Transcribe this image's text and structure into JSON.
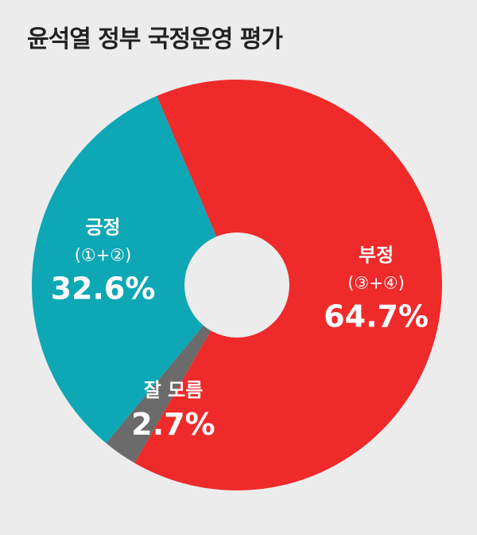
{
  "chart_data": {
    "type": "pie",
    "title": "윤석열 정부 국정운영 평가",
    "slices": [
      {
        "label": "부정",
        "sublabel": "(③+④)",
        "value": 64.7,
        "value_label": "64.7%",
        "color": "#ee2a2b"
      },
      {
        "label": "잘 모름",
        "sublabel": "",
        "value": 2.7,
        "value_label": "2.7%",
        "color": "#6b6b6b"
      },
      {
        "label": "긍정",
        "sublabel": "(①+②)",
        "value": 32.6,
        "value_label": "32.6%",
        "color": "#0ea7b5"
      }
    ],
    "donut": true,
    "legend": "none",
    "background": "#ececec"
  }
}
